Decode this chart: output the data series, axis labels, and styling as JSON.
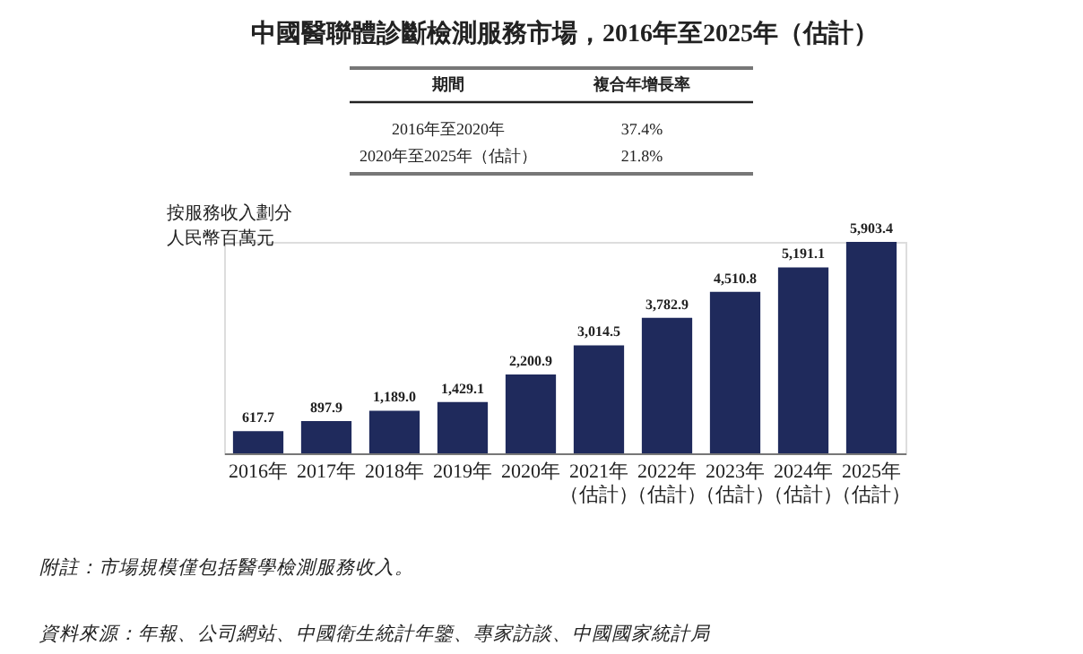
{
  "chart_data": {
    "type": "bar",
    "title": "中國醫聯體診斷檢測服務市場，2016年至2025年（估計）",
    "ylabel": "按服務收入劃分",
    "categories": [
      "2016年",
      "2017年",
      "2018年",
      "2019年",
      "2020年",
      "2021年（估計）",
      "2022年（估計）",
      "2023年（估計）",
      "2024年（估計）",
      "2025年（估計）"
    ],
    "values": [
      617.7,
      897.9,
      1189.0,
      1429.1,
      2200.9,
      3014.5,
      3782.9,
      4510.8,
      5191.1,
      5903.4
    ],
    "value_labels": [
      "617.7",
      "897.9",
      "1,189.0",
      "1,429.1",
      "2,200.9",
      "3,014.5",
      "3,782.9",
      "4,510.8",
      "5,191.1",
      "5,903.4"
    ],
    "color": "#1f2a5c",
    "annotations": [
      "期間",
      "複合年增長率",
      "2016年至2020年",
      "37.4%",
      "2020年至2025年（估計）",
      "21.8%",
      "人民幣百萬元",
      "附註：市場規模僅包括醫學檢測服務收入。",
      "資料來源：年報、公司網站、中國衛生統計年鑒、專家訪談、中國國家統計局"
    ]
  }
}
